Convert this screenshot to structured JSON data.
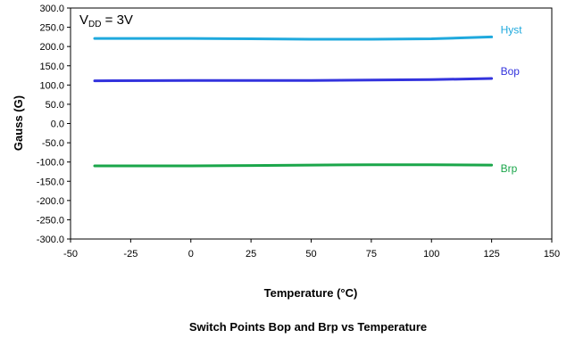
{
  "chart_data": {
    "type": "line",
    "title": "Switch Points Bop and Brp vs Temperature",
    "xlabel": "Temperature (°C)",
    "ylabel": "Gauss  (G)",
    "annotation": {
      "main": "V",
      "sub": "DD",
      "rest": " = 3V"
    },
    "xlim": [
      -50,
      150
    ],
    "ylim": [
      -300,
      300
    ],
    "xticks": [
      -50,
      -25,
      0,
      25,
      50,
      75,
      100,
      125,
      150
    ],
    "xtick_labels": [
      "-50",
      "-25",
      "0",
      "25",
      "50",
      "75",
      "100",
      "125",
      "150"
    ],
    "yticks": [
      300,
      250,
      200,
      150,
      100,
      50,
      0,
      -50,
      -100,
      -150,
      -200,
      -250,
      -300
    ],
    "ytick_labels": [
      "300.0",
      "250.0",
      "200.0",
      "150.0",
      "100.0",
      "50.0",
      "0.0",
      "-50.0",
      "-100.0",
      "-150.0",
      "-200.0",
      "-250.0",
      "-300.0"
    ],
    "grid": false,
    "legend": "inline labels at right end of each line",
    "series": [
      {
        "name": "Hyst",
        "color": "#1fa9dd",
        "x": [
          -40,
          0,
          25,
          50,
          75,
          100,
          125
        ],
        "y": [
          221,
          221,
          220,
          219,
          219,
          220,
          225
        ]
      },
      {
        "name": "Bop",
        "color": "#3333dd",
        "x": [
          -40,
          0,
          25,
          50,
          75,
          100,
          125
        ],
        "y": [
          111,
          112,
          112,
          112,
          113,
          114,
          117
        ]
      },
      {
        "name": "Brp",
        "color": "#1aa64a",
        "x": [
          -40,
          0,
          25,
          50,
          75,
          100,
          125
        ],
        "y": [
          -110,
          -110,
          -109,
          -108,
          -107,
          -107,
          -108
        ]
      }
    ]
  }
}
